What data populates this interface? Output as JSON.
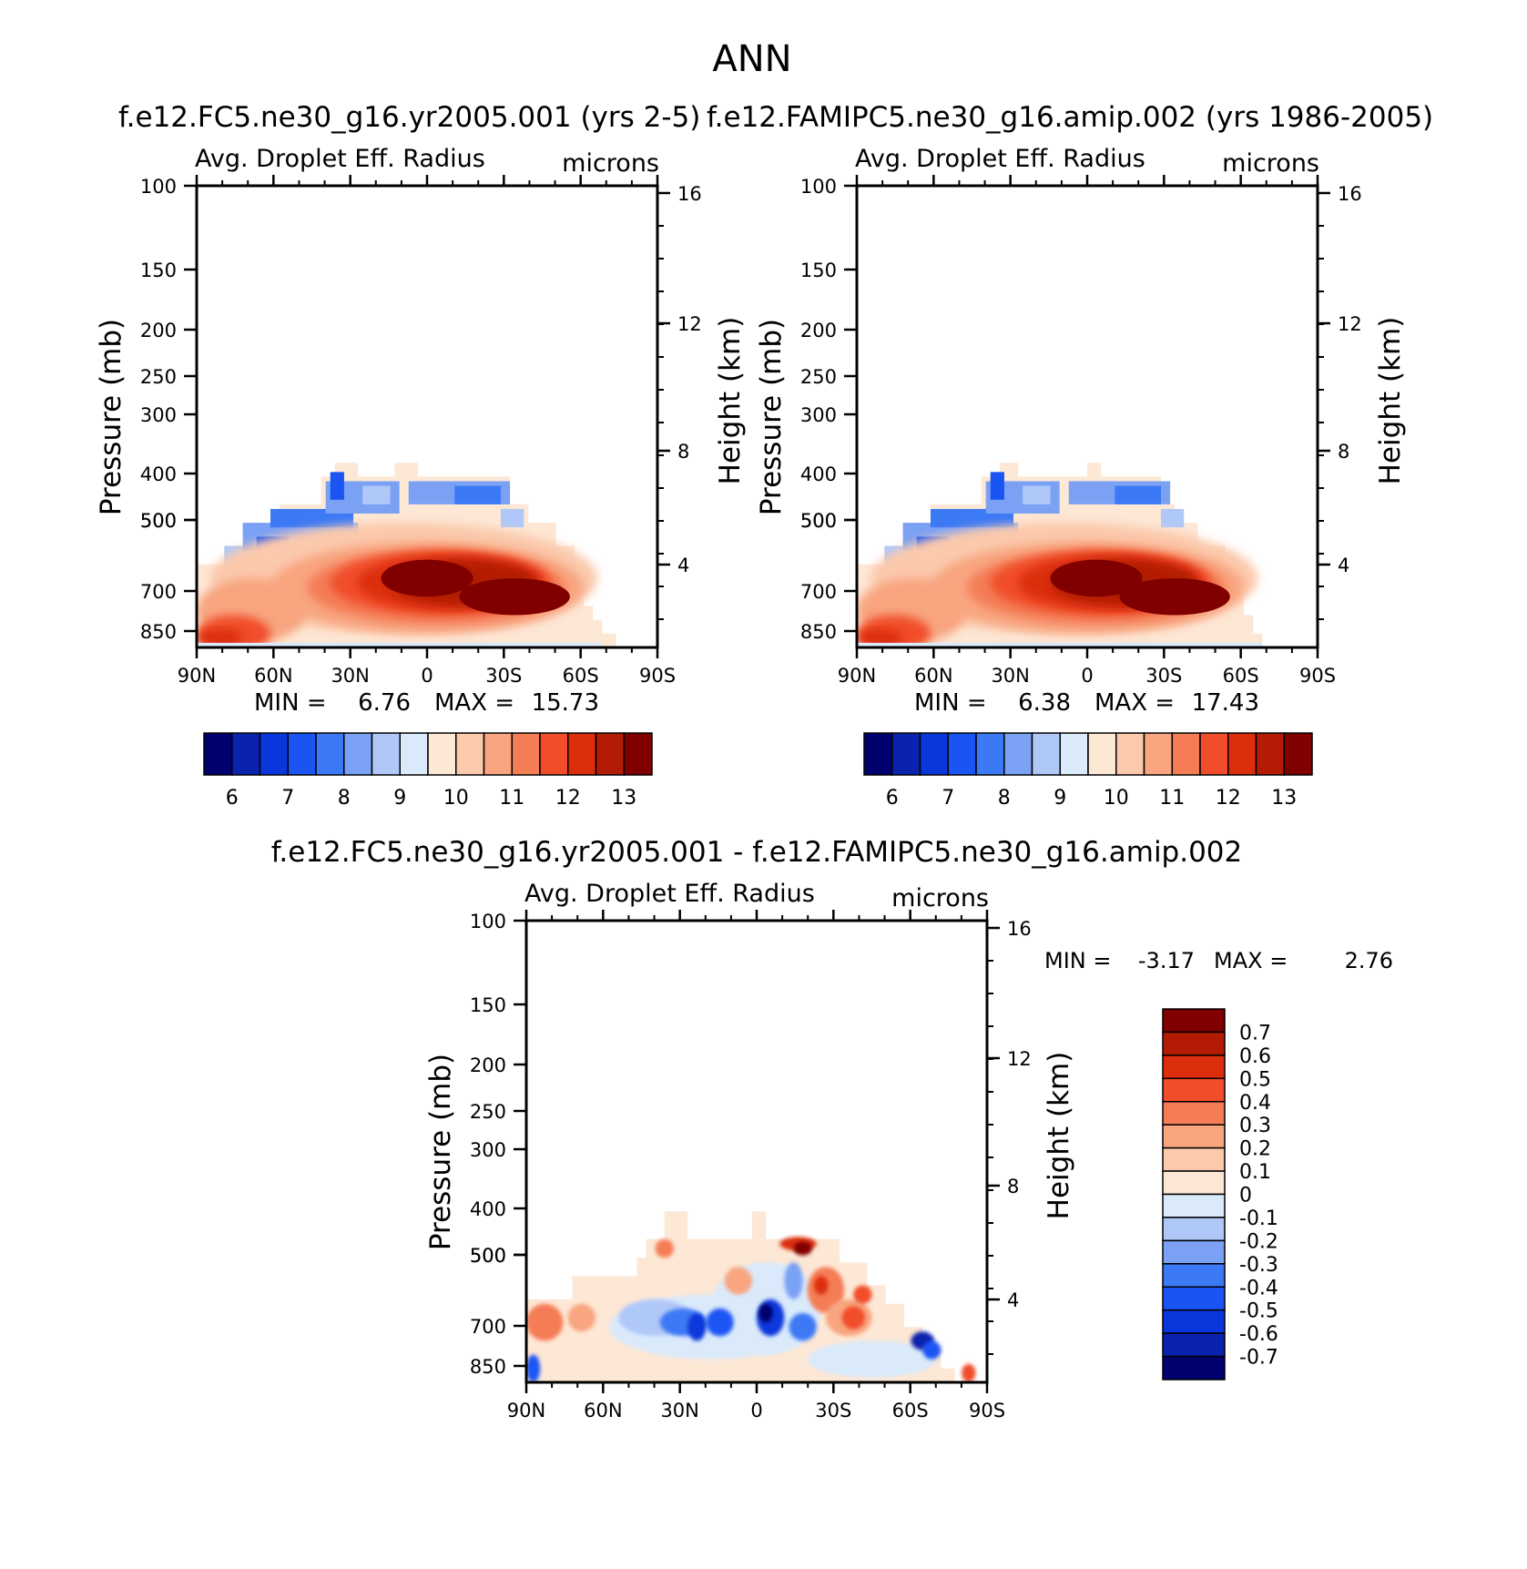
{
  "page_title": "ANN",
  "colors": {
    "base_palette": [
      "#00006e",
      "#0a23ae",
      "#0a37dc",
      "#1a55f4",
      "#3c79f5",
      "#7aa1f4",
      "#b0c8f8",
      "#daeafb",
      "#fde7d5",
      "#fbc9ac",
      "#f8a580",
      "#f47d56",
      "#f14d2a",
      "#dc2e0c",
      "#b41b05",
      "#800000"
    ],
    "diff_palette": [
      "#00006e",
      "#0a23ae",
      "#0a37dc",
      "#1a55f4",
      "#3c79f5",
      "#7aa1f4",
      "#b0c8f8",
      "#daeafb",
      "#fde7d5",
      "#fbc9ac",
      "#f8a580",
      "#f47d56",
      "#f14d2a",
      "#dc2e0c",
      "#b41b05",
      "#800000"
    ]
  },
  "chart_data": [
    {
      "type": "heatmap",
      "title": "f.e12.FC5.ne30_g16.yr2005.001 (yrs 2-5)",
      "left_label": "Avg. Droplet Eff. Radius",
      "right_label": "microns",
      "ylabel": "Pressure (mb)",
      "y2label": "Height (km)",
      "x_ticks": [
        "90N",
        "60N",
        "30N",
        "0",
        "30S",
        "60S",
        "90S"
      ],
      "y_ticks": [
        "100",
        "150",
        "200",
        "250",
        "300",
        "400",
        "500",
        "500",
        "700",
        "850"
      ],
      "y2_ticks": [
        "16",
        "12",
        "8",
        "4"
      ],
      "min_label": "MIN =",
      "min_value": "6.76",
      "max_label": "MAX =",
      "max_value": "15.73",
      "colorbar_labels": [
        "6",
        "7",
        "8",
        "9",
        "10",
        "11",
        "12",
        "13"
      ],
      "levels": [
        6,
        6.5,
        7,
        7.5,
        8,
        8.5,
        9,
        9.5,
        10,
        10.5,
        11,
        11.5,
        12,
        12.5,
        13
      ],
      "ylim": [
        1000,
        100
      ],
      "xlim": [
        90,
        -90
      ]
    },
    {
      "type": "heatmap",
      "title": "f.e12.FAMIPC5.ne30_g16.amip.002 (yrs 1986-2005)",
      "left_label": "Avg. Droplet Eff. Radius",
      "right_label": "microns",
      "ylabel": "Pressure (mb)",
      "y2label": "Height (km)",
      "x_ticks": [
        "90N",
        "60N",
        "30N",
        "0",
        "30S",
        "60S",
        "90S"
      ],
      "y_ticks": [
        "100",
        "150",
        "200",
        "250",
        "300",
        "400",
        "500",
        "500",
        "700",
        "850"
      ],
      "y2_ticks": [
        "16",
        "12",
        "8",
        "4"
      ],
      "min_label": "MIN =",
      "min_value": "6.38",
      "max_label": "MAX =",
      "max_value": "17.43",
      "colorbar_labels": [
        "6",
        "7",
        "8",
        "9",
        "10",
        "11",
        "12",
        "13"
      ],
      "levels": [
        6,
        6.5,
        7,
        7.5,
        8,
        8.5,
        9,
        9.5,
        10,
        10.5,
        11,
        11.5,
        12,
        12.5,
        13
      ],
      "ylim": [
        1000,
        100
      ],
      "xlim": [
        90,
        -90
      ]
    },
    {
      "type": "heatmap",
      "title": "f.e12.FC5.ne30_g16.yr2005.001 - f.e12.FAMIPC5.ne30_g16.amip.002",
      "left_label": "Avg. Droplet Eff. Radius",
      "right_label": "microns",
      "ylabel": "Pressure (mb)",
      "y2label": "Height (km)",
      "x_ticks": [
        "90N",
        "60N",
        "30N",
        "0",
        "30S",
        "60S",
        "90S"
      ],
      "y_ticks": [
        "100",
        "150",
        "200",
        "250",
        "300",
        "400",
        "500",
        "500",
        "700",
        "850"
      ],
      "y2_ticks": [
        "16",
        "12",
        "8",
        "4"
      ],
      "min_label": "MIN =",
      "min_value": "-3.17",
      "max_label": "MAX =",
      "max_value": "2.76",
      "colorbar_labels": [
        "0.7",
        "0.6",
        "0.5",
        "0.4",
        "0.3",
        "0.2",
        "0.1",
        "0",
        "-0.1",
        "-0.2",
        "-0.3",
        "-0.4",
        "-0.5",
        "-0.6",
        "-0.7"
      ],
      "levels": [
        0.7,
        0.6,
        0.5,
        0.4,
        0.3,
        0.2,
        0.1,
        0,
        -0.1,
        -0.2,
        -0.3,
        -0.4,
        -0.5,
        -0.6,
        -0.7
      ],
      "ylim": [
        1000,
        100
      ],
      "xlim": [
        90,
        -90
      ]
    }
  ]
}
